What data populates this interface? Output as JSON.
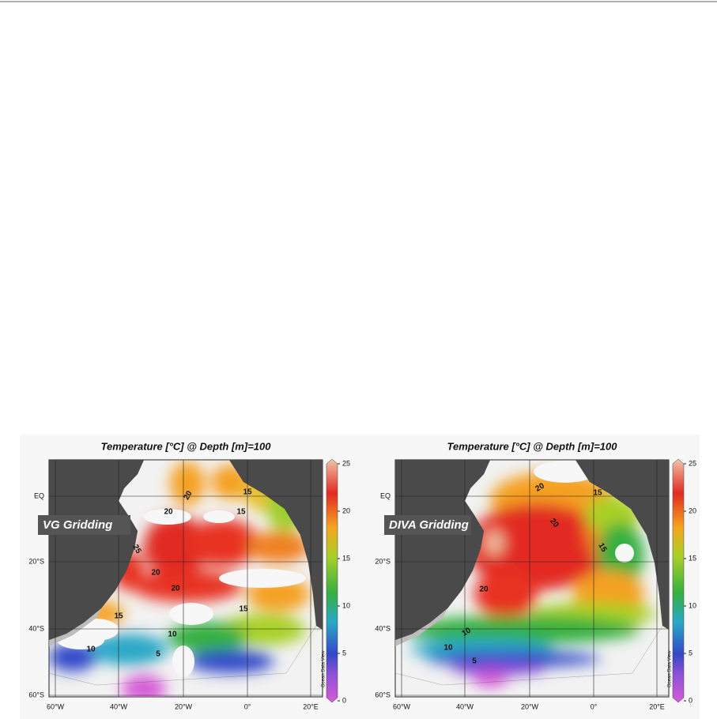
{
  "panels": [
    {
      "title": "Temperature [°C] @ Depth [m]=100",
      "label": "VG Gridding",
      "lat_labels": [
        "EQ",
        "20°S",
        "40°S",
        "60°S"
      ],
      "lon_labels": [
        "60°W",
        "40°W",
        "20°W",
        "0°",
        "20°E"
      ],
      "colorbar_ticks": [
        0,
        5,
        10,
        15,
        20,
        25
      ],
      "watermark": "Ocean Data View",
      "contour_labels": [
        "20",
        "20",
        "15",
        "15",
        "25",
        "20",
        "20",
        "15",
        "15",
        "10",
        "10",
        "5"
      ]
    },
    {
      "title": "Temperature [°C] @ Depth [m]=100",
      "label": "DIVA Gridding",
      "lat_labels": [
        "EQ",
        "20°S",
        "40°S",
        "60°S"
      ],
      "lon_labels": [
        "60°W",
        "40°W",
        "20°W",
        "0°",
        "20°E"
      ],
      "colorbar_ticks": [
        0,
        5,
        10,
        15,
        20,
        25
      ],
      "watermark": "Ocean Data View",
      "contour_labels": [
        "20",
        "15",
        "20",
        "15",
        "20",
        "10",
        "10",
        "5"
      ]
    }
  ]
}
